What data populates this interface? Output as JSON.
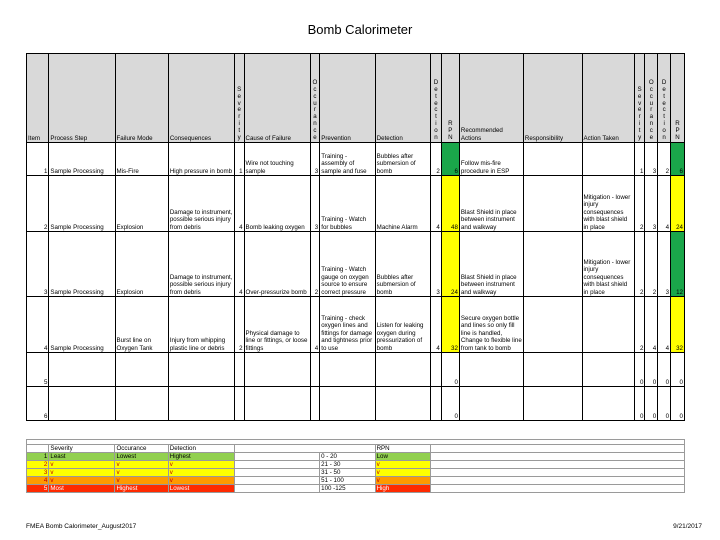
{
  "title": "Bomb Calorimeter",
  "header": {
    "item": "Item",
    "process_step": "Process Step",
    "failure_mode": "Failure Mode",
    "consequences": "Consequences",
    "severity": "Severity",
    "cause": "Cause of Failure",
    "occurance": "Occurance",
    "prevention": "Prevention",
    "detection": "Detection",
    "detection_score": "Detection",
    "rpn": "RPN",
    "recommended": "Recommended Actions",
    "responsibility": "Responsibility",
    "action_taken": "Action Taken",
    "severity2": "Severity",
    "occurance2": "Occurance",
    "detection2": "Detection",
    "rpn2": "RPN"
  },
  "rows": [
    {
      "item": "1",
      "step": "Sample Processing",
      "mode": "Mis-Fire",
      "consequences": "High pressure in bomb",
      "sev": "1",
      "cause": "Wire not touching sample",
      "occ": "3",
      "prevention": "Training - assembly of sample and fuse",
      "detection": "Bubbles after submersion of bomb",
      "det": "2",
      "rpn": "6",
      "recommended": "Follow mis-fire procedure in ESP",
      "responsibility": "",
      "action": "",
      "sev2": "1",
      "occ2": "3",
      "det2": "2",
      "rpn2": "6",
      "rpn_color": "green",
      "rpn2_color": "green"
    },
    {
      "item": "2",
      "step": "Sample Processing",
      "mode": "Explosion",
      "consequences": "Damage to instrument, possible serious injury from debris",
      "sev": "4",
      "cause": "Bomb leaking oxygen",
      "occ": "3",
      "prevention": "Training - Watch for bubbles",
      "detection": "Machine Alarm",
      "det": "4",
      "rpn": "48",
      "recommended": "Blast Shield in place between instrument and walkway",
      "responsibility": "",
      "action": "Mitigation - lower injury consequences with blast shield in place",
      "sev2": "2",
      "occ2": "3",
      "det2": "4",
      "rpn2": "24",
      "rpn_color": "yellow",
      "rpn2_color": "yellow"
    },
    {
      "item": "3",
      "step": "Sample Processing",
      "mode": "Explosion",
      "consequences": "Damage to instrument, possible serious injury from debris",
      "sev": "4",
      "cause": "Over-pressurize bomb",
      "occ": "2",
      "prevention": "Training - Watch gauge on oxygen source to ensure correct pressure",
      "detection": "Bubbles after submersion of bomb",
      "det": "3",
      "rpn": "24",
      "recommended": "Blast Shield in place between instrument and walkway",
      "responsibility": "",
      "action": "Mitigation - lower injury consequences with blast shield in place",
      "sev2": "2",
      "occ2": "2",
      "det2": "3",
      "rpn2": "12",
      "rpn_color": "yellow",
      "rpn2_color": "green"
    },
    {
      "item": "4",
      "step": "Sample Processing",
      "mode": "Burst line on Oxygen Tank",
      "consequences": "Injury from whipping plastic line or debris",
      "sev": "2",
      "cause": "Physical damage to line or fittings, or loose fittings",
      "occ": "4",
      "prevention": "Training - check oxygen lines and fittings for damage and tightness prior to use",
      "detection": "Listen for leaking oxygen during pressurization of bomb",
      "det": "4",
      "rpn": "32",
      "recommended": "Secure oxygen bottle and lines so only fill line is handled, Change to flexible line from tank to bomb",
      "responsibility": "",
      "action": "",
      "sev2": "2",
      "occ2": "4",
      "det2": "4",
      "rpn2": "32",
      "rpn_color": "yellow",
      "rpn2_color": "yellow"
    },
    {
      "item": "5",
      "step": "",
      "mode": "",
      "consequences": "",
      "sev": "",
      "cause": "",
      "occ": "",
      "prevention": "",
      "detection": "",
      "det": "",
      "rpn": "0",
      "recommended": "",
      "responsibility": "",
      "action": "",
      "sev2": "0",
      "occ2": "0",
      "det2": "0",
      "rpn2": "0",
      "rpn_color": "none",
      "rpn2_color": "none"
    },
    {
      "item": "6",
      "step": "",
      "mode": "",
      "consequences": "",
      "sev": "",
      "cause": "",
      "occ": "",
      "prevention": "",
      "detection": "",
      "det": "",
      "rpn": "0",
      "recommended": "",
      "responsibility": "",
      "action": "",
      "sev2": "0",
      "occ2": "0",
      "det2": "0",
      "rpn2": "0",
      "rpn_color": "none",
      "rpn2_color": "none"
    }
  ],
  "legend": {
    "headers": {
      "severity": "Severity",
      "occurance": "Occurance",
      "detection": "Detection",
      "rpn": "RPN"
    },
    "rows": [
      {
        "n": "1",
        "sev": "Least",
        "occ": "Lowest",
        "det": "Highest",
        "range": "0 - 20",
        "rpn": "Low",
        "color": "green"
      },
      {
        "n": "2",
        "sev": "v",
        "occ": "v",
        "det": "v",
        "range": "21 - 30",
        "rpn": "v",
        "color": "yellow"
      },
      {
        "n": "3",
        "sev": "v",
        "occ": "v",
        "det": "v",
        "range": "31 - 50",
        "rpn": "v",
        "color": "yellow"
      },
      {
        "n": "4",
        "sev": "v",
        "occ": "v",
        "det": "v",
        "range": "51 - 100",
        "rpn": "v",
        "color": "orange"
      },
      {
        "n": "5",
        "sev": "Most",
        "occ": "Highest",
        "det": "Lowest",
        "range": "100 -125",
        "rpn": "High",
        "color": "red"
      }
    ]
  },
  "footer": {
    "left": "FMEA Bomb Calorimeter_August2017",
    "right": "9/21/2017"
  },
  "colors": {
    "green": "#1aa64a",
    "yellow": "#ffff00",
    "orange": "#ff9a00",
    "red": "#ff2a00",
    "header_gray": "#d9d9d9"
  }
}
